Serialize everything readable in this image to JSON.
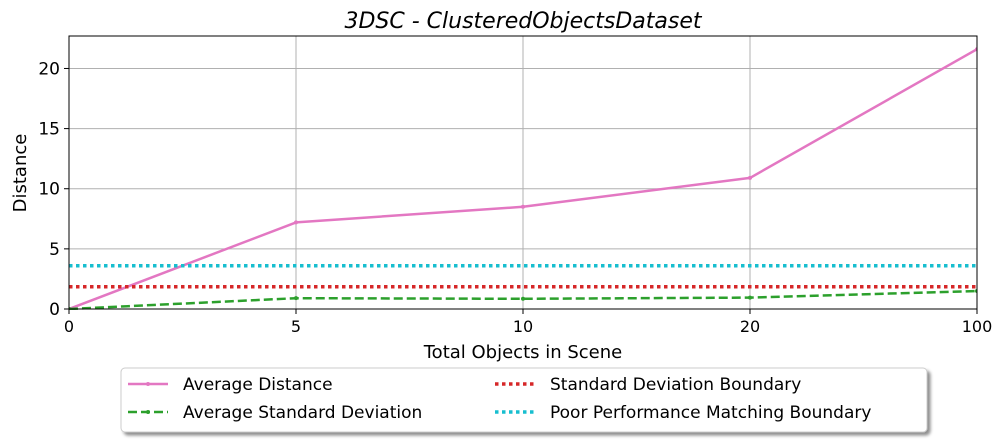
{
  "chart_data": {
    "type": "line",
    "title": "3DSC - ClusteredObjectsDataset",
    "xlabel": "Total Objects in Scene",
    "ylabel": "Distance",
    "categories": [
      "0",
      "5",
      "10",
      "20",
      "100"
    ],
    "xlim": [
      0,
      4
    ],
    "ylim": [
      0,
      22.7
    ],
    "yticks": [
      0,
      5,
      10,
      15,
      20
    ],
    "grid": true,
    "legend_position": "bottom-center",
    "series": [
      {
        "name": "Average Distance",
        "values": [
          0,
          7.2,
          8.5,
          10.9,
          21.6
        ],
        "color": "#e377c2",
        "style": "solid"
      },
      {
        "name": "Average Standard Deviation",
        "values": [
          0,
          0.9,
          0.85,
          0.95,
          1.5
        ],
        "color": "#2ca02c",
        "style": "dashed"
      },
      {
        "name": "Standard Deviation Boundary",
        "values": [
          1.85,
          1.85,
          1.85,
          1.85,
          1.85
        ],
        "color": "#d62728",
        "style": "dotted"
      },
      {
        "name": "Poor Performance Matching Boundary",
        "values": [
          3.6,
          3.6,
          3.6,
          3.6,
          3.6
        ],
        "color": "#17becf",
        "style": "dotted"
      }
    ]
  }
}
